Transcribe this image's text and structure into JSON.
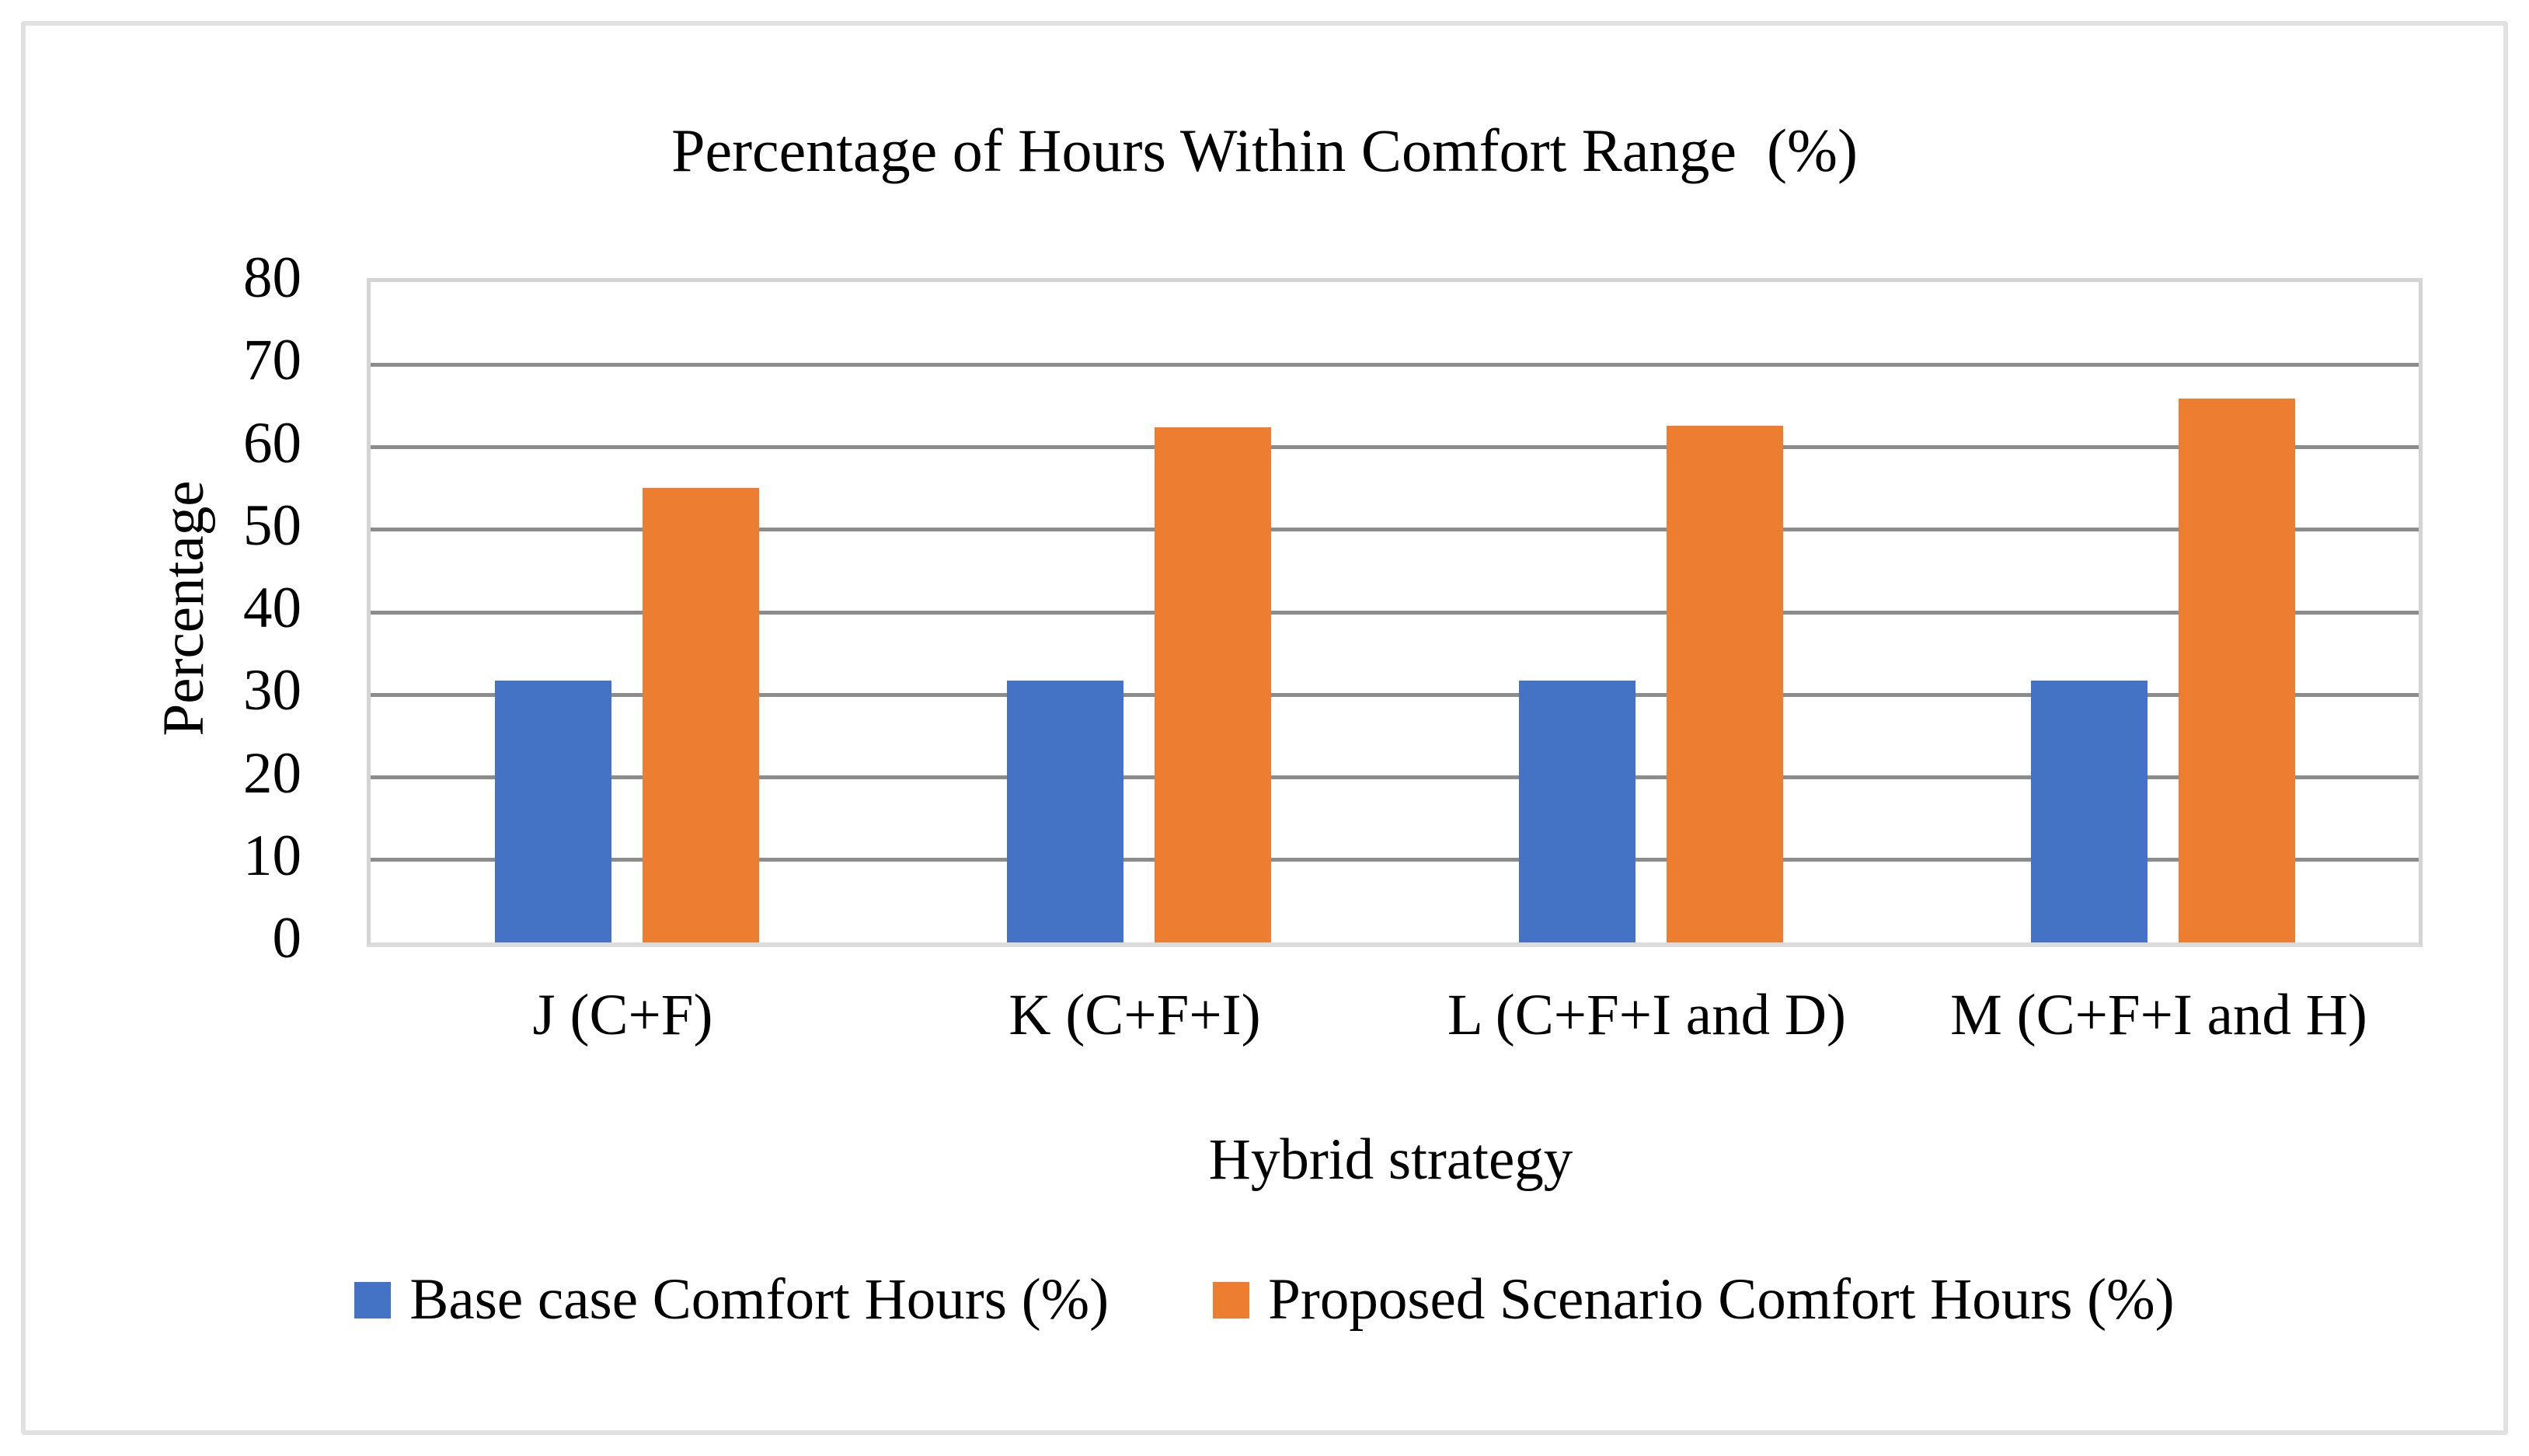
{
  "figure": {
    "background": "#FFFFFF",
    "border_color": "#E1E1E1"
  },
  "chart_data": {
    "type": "bar",
    "title": "Percentage of Hours Within Comfort Range  (%)",
    "xlabel": "Hybrid strategy",
    "ylabel": "Percentage",
    "categories": [
      "J (C+F)",
      "K (C+F+I)",
      "L (C+F+I and D)",
      "M (C+F+I and H)"
    ],
    "series": [
      {
        "name": "Base case Comfort Hours (%)",
        "color": "#4472C4",
        "values": [
          31.7,
          31.7,
          31.7,
          31.7
        ]
      },
      {
        "name": "Proposed Scenario Comfort Hours (%)",
        "color": "#ED7D31",
        "values": [
          55.1,
          62.4,
          62.6,
          65.9
        ]
      }
    ],
    "ylim": [
      0,
      80
    ],
    "yticks": [
      0,
      10,
      20,
      30,
      40,
      50,
      60,
      70,
      80
    ],
    "grid": "horizontal-major",
    "gridline_color": "#8C8C8C",
    "axis_line_color": "#D4D4D4",
    "legend_position": "bottom"
  }
}
